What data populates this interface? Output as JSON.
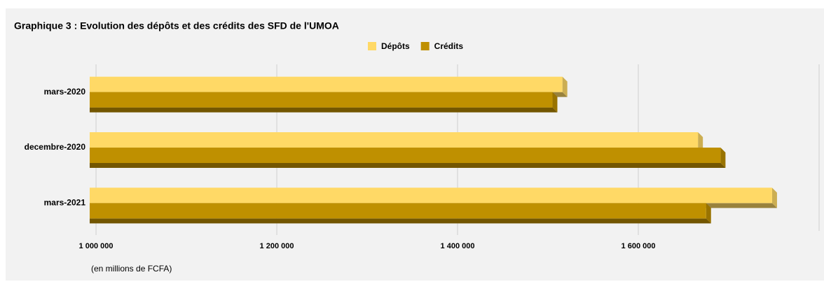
{
  "chart_data": {
    "type": "hbar3d",
    "title": "Graphique 3 : Evolution des dépôts et des crédits des SFD de l'UMOA",
    "categories": [
      "mars-2020",
      "decembre-2020",
      "mars-2021"
    ],
    "series": [
      {
        "name": "Dépôts",
        "color": "#ffd966",
        "values": [
          1516000,
          1666000,
          1748000
        ]
      },
      {
        "name": "Crédits",
        "color": "#bf9000",
        "values": [
          1505000,
          1691000,
          1675000
        ]
      }
    ],
    "xlim": [
      993000,
      1800000
    ],
    "xticks": [
      {
        "value": 1000000,
        "label": "1 000 000"
      },
      {
        "value": 1200000,
        "label": "1 200 000"
      },
      {
        "value": 1400000,
        "label": "1 400 000"
      },
      {
        "value": 1600000,
        "label": "1 600 000"
      }
    ],
    "x_label": "(en millions de FCFA)",
    "grid": true,
    "legend": "top"
  }
}
